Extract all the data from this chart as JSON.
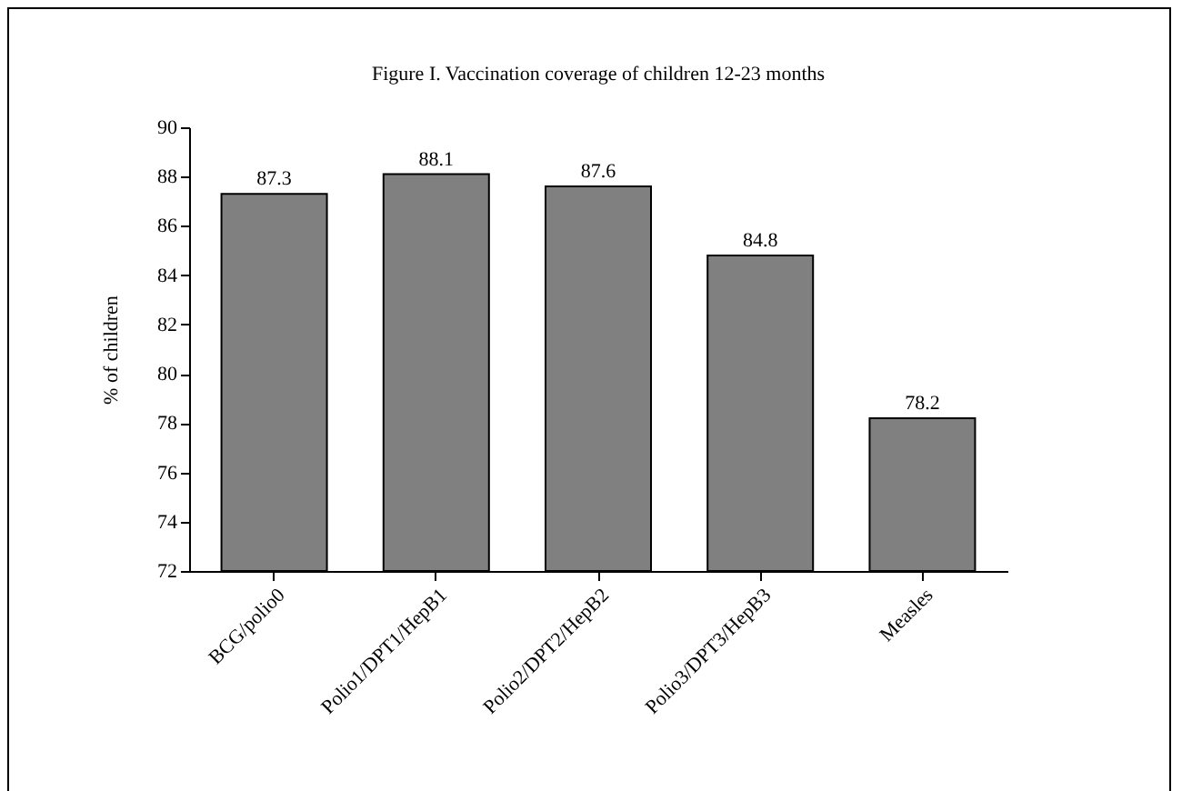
{
  "chart_data": {
    "type": "bar",
    "title": "Figure I. Vaccination coverage of children 12-23 months",
    "ylabel": "% of children",
    "categories": [
      "BCG/polio0",
      "Polio1/DPT1/HepB1",
      "Polio2/DPT2/HepB2",
      "Polio3/DPT3/HepB3",
      "Measles"
    ],
    "values": [
      87.3,
      88.1,
      87.6,
      84.8,
      78.2
    ],
    "color": "#808080",
    "ylim": [
      72,
      90
    ],
    "yticks": [
      72,
      74,
      76,
      78,
      80,
      82,
      84,
      86,
      88,
      90
    ],
    "grid": false,
    "data_labels": true,
    "legend": false
  }
}
